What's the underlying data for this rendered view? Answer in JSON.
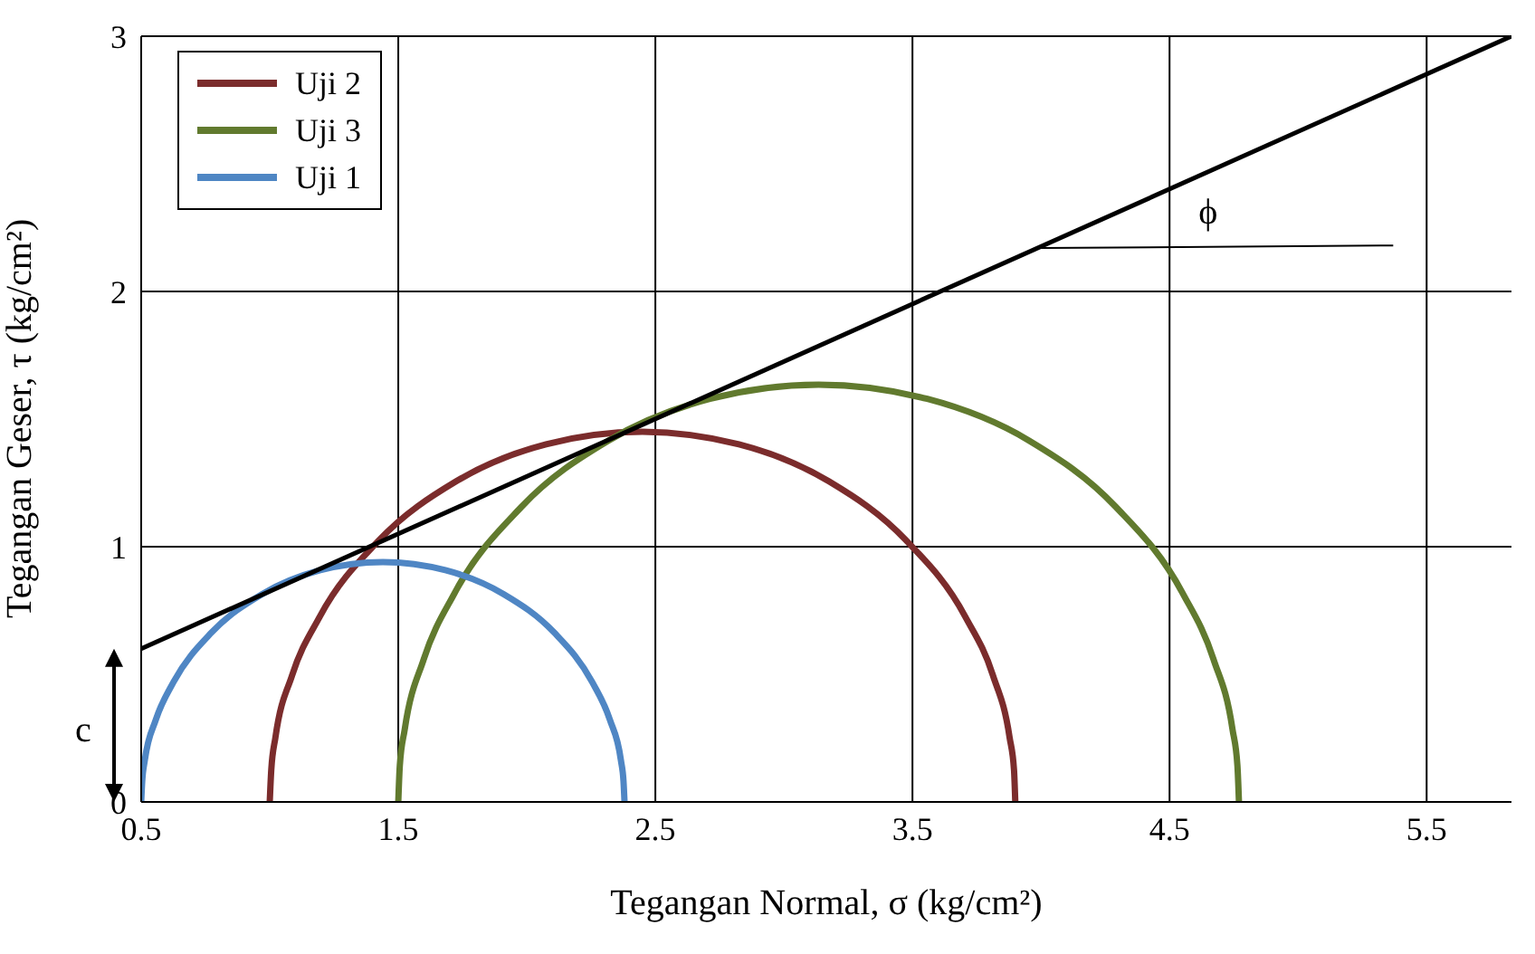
{
  "chart_data": {
    "type": "line",
    "xlabel": "Tegangan Normal, σ (kg/cm²)",
    "ylabel": "Tegangan Geser, τ (kg/cm²)",
    "xlim": [
      0.5,
      5.83
    ],
    "xticks": [
      0.5,
      1.5,
      2.5,
      3.5,
      4.5,
      5.5
    ],
    "ylim": [
      0,
      3
    ],
    "yticks": [
      0,
      1,
      2,
      3
    ],
    "grid": true,
    "legend": "top left",
    "marker": "none",
    "annotations": [
      "ϕ",
      "c"
    ],
    "series": [
      {
        "name": "Uji 2",
        "color": "#7b2c2c",
        "x": [
          1.0,
          1.006,
          1.022,
          1.087,
          1.194,
          1.425,
          1.725,
          2.075,
          2.45,
          2.825,
          3.175,
          3.475,
          3.706,
          3.813,
          3.878,
          3.895,
          3.9
        ],
        "values": [
          0,
          0.126,
          0.252,
          0.496,
          0.725,
          1.025,
          1.256,
          1.401,
          1.45,
          1.401,
          1.256,
          1.025,
          0.725,
          0.496,
          0.252,
          0.126,
          0
        ]
      },
      {
        "name": "Uji 3",
        "color": "#617a2e",
        "x": [
          1.5,
          1.506,
          1.525,
          1.599,
          1.719,
          1.979,
          2.318,
          2.712,
          3.135,
          3.558,
          3.953,
          4.291,
          4.551,
          4.671,
          4.745,
          4.764,
          4.77
        ],
        "values": [
          0,
          0.143,
          0.284,
          0.559,
          0.818,
          1.156,
          1.416,
          1.579,
          1.635,
          1.579,
          1.416,
          1.156,
          0.818,
          0.559,
          0.284,
          0.143,
          0
        ]
      },
      {
        "name": "Uji 1",
        "color": "#4f86c4",
        "x": [
          0.5,
          0.504,
          0.514,
          0.557,
          0.626,
          0.775,
          0.97,
          1.197,
          1.44,
          1.683,
          1.91,
          2.105,
          2.254,
          2.323,
          2.366,
          2.376,
          2.38
        ],
        "values": [
          0,
          0.082,
          0.163,
          0.322,
          0.47,
          0.665,
          0.814,
          0.908,
          0.94,
          0.908,
          0.814,
          0.665,
          0.47,
          0.322,
          0.163,
          0.082,
          0
        ]
      },
      {
        "color": "#000000",
        "x": [
          0.5,
          5.83
        ],
        "values": [
          0.6,
          3.0
        ]
      }
    ]
  }
}
